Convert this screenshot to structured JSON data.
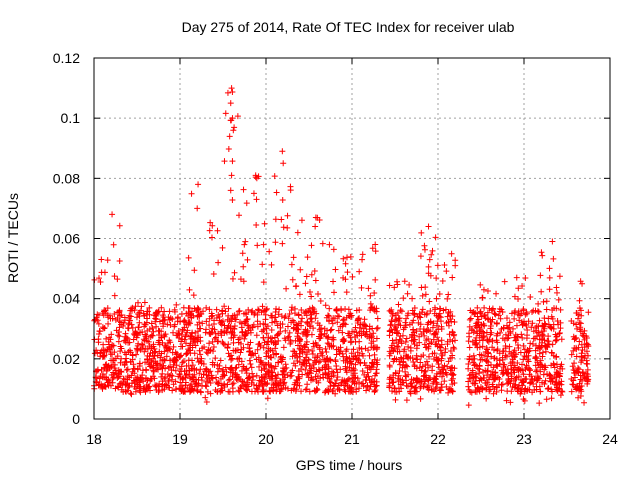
{
  "chart_data": {
    "type": "scatter",
    "title": "Day 275 of 2014, Rate Of TEC Index for receiver ulab",
    "xlabel": "GPS time / hours",
    "ylabel": "ROTI / TECUs",
    "xlim": [
      18,
      24
    ],
    "ylim": [
      0,
      0.12
    ],
    "xticks": [
      18,
      19,
      20,
      21,
      22,
      23,
      24
    ],
    "yticks": [
      0,
      0.02,
      0.04,
      0.06,
      0.08,
      0.1,
      0.12
    ],
    "ytick_labels": [
      "0",
      "0.02",
      "0.04",
      "0.06",
      "0.08",
      "0.1",
      "0.12"
    ],
    "grid": true,
    "marker": "+",
    "color": "#ff0000",
    "data_gaps_hours": [
      [
        21.3,
        21.43
      ],
      [
        22.2,
        22.35
      ],
      [
        23.45,
        23.55
      ]
    ],
    "segments": [
      {
        "x_start": 18.0,
        "x_end": 18.15,
        "y_low": 0.01,
        "y_high": 0.055
      },
      {
        "x_start": 18.15,
        "x_end": 18.3,
        "y_low": 0.01,
        "y_high": 0.068
      },
      {
        "x_start": 18.3,
        "x_end": 18.6,
        "y_low": 0.007,
        "y_high": 0.04
      },
      {
        "x_start": 18.6,
        "x_end": 19.1,
        "y_low": 0.008,
        "y_high": 0.038
      },
      {
        "x_start": 19.1,
        "x_end": 19.5,
        "y_low": 0.005,
        "y_high": 0.078
      },
      {
        "x_start": 19.5,
        "x_end": 19.7,
        "y_low": 0.008,
        "y_high": 0.11
      },
      {
        "x_start": 19.7,
        "x_end": 20.0,
        "y_low": 0.008,
        "y_high": 0.081
      },
      {
        "x_start": 20.0,
        "x_end": 20.3,
        "y_low": 0.006,
        "y_high": 0.089
      },
      {
        "x_start": 20.3,
        "x_end": 20.7,
        "y_low": 0.007,
        "y_high": 0.067
      },
      {
        "x_start": 20.7,
        "x_end": 21.3,
        "y_low": 0.006,
        "y_high": 0.058
      },
      {
        "x_start": 21.43,
        "x_end": 21.8,
        "y_low": 0.005,
        "y_high": 0.046
      },
      {
        "x_start": 21.8,
        "x_end": 22.2,
        "y_low": 0.006,
        "y_high": 0.064
      },
      {
        "x_start": 22.35,
        "x_end": 22.8,
        "y_low": 0.003,
        "y_high": 0.046
      },
      {
        "x_start": 22.8,
        "x_end": 23.2,
        "y_low": 0.005,
        "y_high": 0.05
      },
      {
        "x_start": 23.2,
        "x_end": 23.45,
        "y_low": 0.005,
        "y_high": 0.059
      },
      {
        "x_start": 23.55,
        "x_end": 23.75,
        "y_low": 0.004,
        "y_high": 0.049
      }
    ],
    "peak_points": [
      {
        "x": 19.6,
        "y": 0.11
      },
      {
        "x": 19.59,
        "y": 0.105
      },
      {
        "x": 19.61,
        "y": 0.1
      },
      {
        "x": 19.62,
        "y": 0.096
      },
      {
        "x": 20.19,
        "y": 0.089
      },
      {
        "x": 20.2,
        "y": 0.085
      },
      {
        "x": 19.88,
        "y": 0.081
      },
      {
        "x": 19.6,
        "y": 0.081
      },
      {
        "x": 19.21,
        "y": 0.078
      },
      {
        "x": 19.59,
        "y": 0.076
      },
      {
        "x": 19.86,
        "y": 0.075
      },
      {
        "x": 19.89,
        "y": 0.073
      },
      {
        "x": 19.2,
        "y": 0.07
      },
      {
        "x": 18.21,
        "y": 0.068
      },
      {
        "x": 20.58,
        "y": 0.067
      },
      {
        "x": 21.89,
        "y": 0.064
      },
      {
        "x": 23.33,
        "y": 0.059
      },
      {
        "x": 21.27,
        "y": 0.058
      },
      {
        "x": 22.2,
        "y": 0.051
      }
    ]
  }
}
